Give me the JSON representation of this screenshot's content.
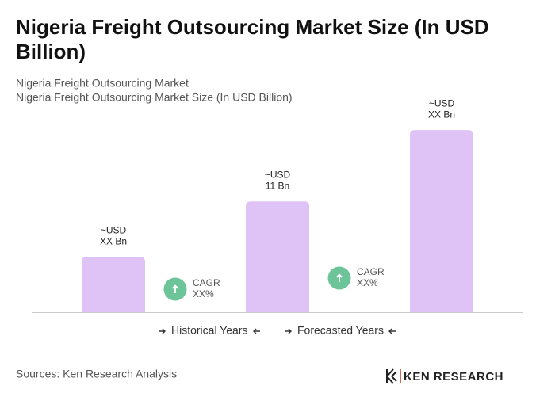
{
  "chart_data": {
    "type": "bar",
    "title": "Nigeria Freight Outsourcing Market Size (In USD Billion)",
    "subtitle": [
      "Nigeria Freight Outsourcing Market",
      "Nigeria Freight Outsourcing Market Size (In USD Billion)"
    ],
    "categories": [
      null,
      null,
      null
    ],
    "values": [
      5.5,
      11,
      18.1
    ],
    "value_labels": [
      [
        "~USD",
        "XX Bn"
      ],
      [
        "~USD",
        "11 Bn"
      ],
      [
        "~USD",
        "XX Bn"
      ]
    ],
    "color": "#dfc3f7",
    "ylim": [
      0,
      20
    ],
    "annotations": [
      [
        "CAGR",
        "XX%"
      ],
      [
        "CAGR",
        "XX%"
      ]
    ],
    "annotation_color": "#6cc498",
    "legend": [
      "Historical Years",
      "Forecasted Years"
    ],
    "source": "Sources: Ken Research Analysis",
    "logo": "KEN RESEARCH"
  }
}
